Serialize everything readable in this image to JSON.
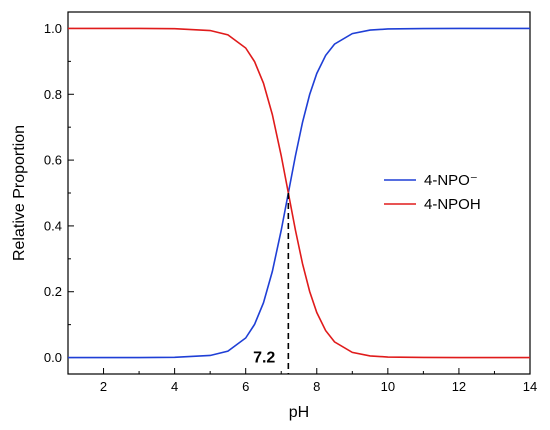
{
  "chart_data": {
    "type": "line",
    "xlabel": "pH",
    "ylabel": "Relative Proportion",
    "xlim": [
      1,
      14
    ],
    "ylim": [
      -0.05,
      1.05
    ],
    "x_ticks": [
      2,
      4,
      6,
      8,
      10,
      12,
      14
    ],
    "y_ticks": [
      0.0,
      0.2,
      0.4,
      0.6,
      0.8,
      1.0
    ],
    "y_tick_labels": [
      "0.0",
      "0.2",
      "0.4",
      "0.6",
      "0.8",
      "1.0"
    ],
    "x_tick_labels": [
      "2",
      "4",
      "6",
      "8",
      "10",
      "12",
      "14"
    ],
    "grid": false,
    "legend_position": "right",
    "pKa": 7.2,
    "series": [
      {
        "name": "4-NPO⁻",
        "color": "#1f3fd6",
        "x": [
          1,
          2,
          3,
          4,
          5,
          5.5,
          6,
          6.25,
          6.5,
          6.75,
          7,
          7.2,
          7.4,
          7.6,
          7.8,
          8,
          8.25,
          8.5,
          9,
          9.5,
          10,
          11,
          12,
          13,
          14
        ],
        "y": [
          0.0,
          0.0,
          0.0,
          0.0006,
          0.0063,
          0.0196,
          0.0594,
          0.1008,
          0.1663,
          0.2618,
          0.3869,
          0.5,
          0.6131,
          0.7153,
          0.7992,
          0.8632,
          0.9182,
          0.9524,
          0.9844,
          0.995,
          0.9984,
          0.9998,
          1.0,
          1.0,
          1.0
        ]
      },
      {
        "name": "4-NPOH",
        "color": "#e01b1b",
        "x": [
          1,
          2,
          3,
          4,
          5,
          5.5,
          6,
          6.25,
          6.5,
          6.75,
          7,
          7.2,
          7.4,
          7.6,
          7.8,
          8,
          8.25,
          8.5,
          9,
          9.5,
          10,
          11,
          12,
          13,
          14
        ],
        "y": [
          1.0,
          1.0,
          1.0,
          0.9994,
          0.9937,
          0.9804,
          0.9406,
          0.8992,
          0.8337,
          0.7382,
          0.6131,
          0.5,
          0.3869,
          0.2847,
          0.2008,
          0.1368,
          0.0818,
          0.0476,
          0.0156,
          0.005,
          0.0016,
          0.0002,
          0.0,
          0.0,
          0.0
        ]
      }
    ],
    "annotations": [
      {
        "text": "7.2",
        "x": 7.2
      }
    ]
  }
}
